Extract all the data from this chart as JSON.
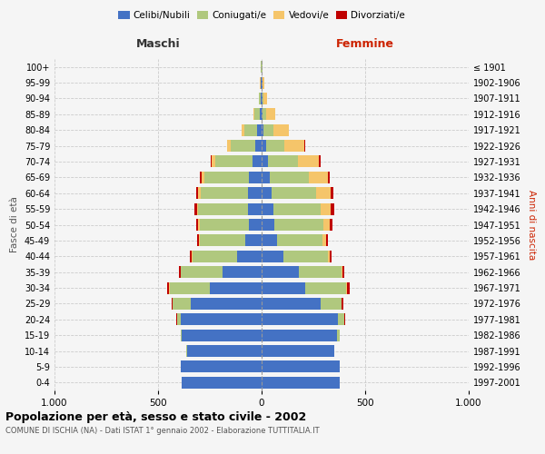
{
  "age_groups": [
    "0-4",
    "5-9",
    "10-14",
    "15-19",
    "20-24",
    "25-29",
    "30-34",
    "35-39",
    "40-44",
    "45-49",
    "50-54",
    "55-59",
    "60-64",
    "65-69",
    "70-74",
    "75-79",
    "80-84",
    "85-89",
    "90-94",
    "95-99",
    "100+"
  ],
  "birth_years": [
    "1997-2001",
    "1992-1996",
    "1987-1991",
    "1982-1986",
    "1977-1981",
    "1972-1976",
    "1967-1971",
    "1962-1966",
    "1957-1961",
    "1952-1956",
    "1947-1951",
    "1942-1946",
    "1937-1941",
    "1932-1936",
    "1927-1931",
    "1922-1926",
    "1917-1921",
    "1912-1916",
    "1907-1911",
    "1902-1906",
    "≤ 1901"
  ],
  "maschi": {
    "celibi": [
      385,
      390,
      360,
      385,
      390,
      340,
      250,
      190,
      120,
      80,
      60,
      65,
      65,
      60,
      45,
      30,
      20,
      10,
      5,
      3,
      2
    ],
    "coniugati": [
      1,
      1,
      2,
      5,
      20,
      90,
      195,
      200,
      215,
      220,
      240,
      240,
      230,
      215,
      180,
      120,
      65,
      25,
      8,
      3,
      1
    ],
    "vedovi": [
      0,
      0,
      0,
      0,
      0,
      1,
      2,
      2,
      3,
      3,
      5,
      8,
      10,
      15,
      15,
      15,
      10,
      5,
      2,
      1,
      0
    ],
    "divorziati": [
      0,
      0,
      0,
      0,
      3,
      5,
      8,
      8,
      8,
      8,
      10,
      12,
      10,
      8,
      5,
      2,
      1,
      1,
      0,
      0,
      0
    ]
  },
  "femmine": {
    "nubili": [
      375,
      375,
      350,
      365,
      370,
      285,
      210,
      180,
      105,
      75,
      60,
      55,
      50,
      40,
      30,
      20,
      10,
      6,
      4,
      3,
      2
    ],
    "coniugate": [
      2,
      2,
      3,
      10,
      28,
      100,
      200,
      205,
      215,
      220,
      240,
      230,
      215,
      190,
      145,
      90,
      45,
      18,
      6,
      3,
      1
    ],
    "vedove": [
      0,
      0,
      0,
      1,
      2,
      3,
      4,
      5,
      8,
      15,
      30,
      50,
      70,
      90,
      100,
      95,
      75,
      40,
      15,
      5,
      1
    ],
    "divorziate": [
      0,
      0,
      0,
      0,
      2,
      5,
      10,
      10,
      10,
      10,
      12,
      15,
      12,
      10,
      8,
      5,
      2,
      1,
      0,
      0,
      0
    ]
  },
  "colors": {
    "celibi_nubili": "#4472C4",
    "coniugati": "#B0C87E",
    "vedovi": "#F5C56A",
    "divorziati": "#C00000"
  },
  "title": "Popolazione per età, sesso e stato civile - 2002",
  "subtitle": "COMUNE DI ISCHIA (NA) - Dati ISTAT 1° gennaio 2002 - Elaborazione TUTTITALIA.IT",
  "xlabel_left": "Maschi",
  "xlabel_right": "Femmine",
  "ylabel_left": "Fasce di età",
  "ylabel_right": "Anni di nascita",
  "xlim": 1000,
  "background_color": "#f5f5f5",
  "plot_background": "#f5f5f5",
  "grid_color": "#cccccc",
  "bar_height": 0.75,
  "legend_labels": [
    "Celibi/Nubili",
    "Coniugati/e",
    "Vedovi/e",
    "Divorziati/e"
  ]
}
